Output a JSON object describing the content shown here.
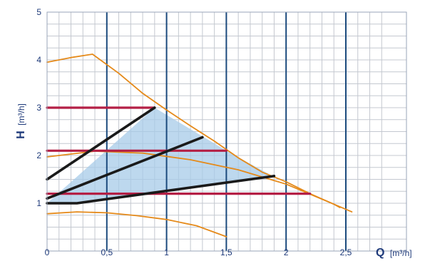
{
  "chart_data": {
    "type": "line",
    "title": "",
    "x_axis": {
      "label_symbol": "Q",
      "label_unit": "[m³/h]",
      "range": [
        0,
        2.75
      ],
      "major_ticks": [
        0,
        0.5,
        1,
        1.5,
        2,
        2.5
      ],
      "tick_labels": [
        "0",
        "0,5",
        "1",
        "1,5",
        "2",
        "2,5"
      ],
      "minor_step": 0.1
    },
    "y_axis": {
      "label_symbol": "H",
      "label_unit": "[m³/h]",
      "range": [
        0,
        5
      ],
      "major_ticks": [
        1,
        2,
        3,
        4,
        5
      ],
      "tick_labels": [
        "1",
        "2",
        "3",
        "4",
        "5"
      ],
      "minor_step": 0.25
    },
    "grid": true,
    "colors": {
      "frame": "#9aa5b8",
      "grid_minor": "#c4c8d0",
      "grid_major": "#1b4a7d",
      "text": "#1e3a7a",
      "orange": "#e58a1a",
      "red": "#b41f45",
      "black": "#1a1a1a",
      "fill": "#a7cbe8"
    },
    "shaded_region": [
      [
        0.0,
        1.0
      ],
      [
        0.9,
        3.0
      ],
      [
        1.5,
        2.1
      ],
      [
        1.9,
        1.55
      ],
      [
        0.9,
        1.25
      ],
      [
        0.25,
        1.0
      ]
    ],
    "series": [
      {
        "style": "orange",
        "points": [
          [
            0.0,
            3.95
          ],
          [
            0.2,
            4.05
          ],
          [
            0.38,
            4.12
          ],
          [
            0.6,
            3.72
          ],
          [
            0.8,
            3.3
          ],
          [
            1.0,
            2.95
          ],
          [
            1.2,
            2.62
          ],
          [
            1.4,
            2.3
          ],
          [
            1.6,
            1.95
          ],
          [
            1.8,
            1.65
          ],
          [
            2.0,
            1.45
          ],
          [
            2.2,
            1.2
          ],
          [
            2.4,
            0.98
          ],
          [
            2.55,
            0.82
          ]
        ]
      },
      {
        "style": "orange",
        "points": [
          [
            0.0,
            1.97
          ],
          [
            0.4,
            2.09
          ],
          [
            0.8,
            2.05
          ],
          [
            1.2,
            1.91
          ],
          [
            1.6,
            1.7
          ],
          [
            2.0,
            1.4
          ],
          [
            2.4,
            0.98
          ],
          [
            2.45,
            0.91
          ]
        ]
      },
      {
        "style": "orange",
        "points": [
          [
            0.0,
            0.78
          ],
          [
            0.25,
            0.82
          ],
          [
            0.5,
            0.8
          ],
          [
            0.75,
            0.74
          ],
          [
            1.0,
            0.66
          ],
          [
            1.25,
            0.53
          ],
          [
            1.5,
            0.3
          ]
        ]
      },
      {
        "style": "red",
        "points": [
          [
            0.0,
            3.0
          ],
          [
            0.9,
            3.0
          ]
        ]
      },
      {
        "style": "red",
        "points": [
          [
            0.0,
            2.1
          ],
          [
            1.5,
            2.1
          ]
        ]
      },
      {
        "style": "red",
        "points": [
          [
            0.0,
            1.2
          ],
          [
            2.2,
            1.2
          ]
        ]
      },
      {
        "style": "black",
        "points": [
          [
            0.0,
            1.5
          ],
          [
            0.9,
            3.0
          ]
        ]
      },
      {
        "style": "black",
        "points": [
          [
            0.0,
            1.1
          ],
          [
            1.3,
            2.38
          ]
        ]
      },
      {
        "style": "black",
        "points": [
          [
            0.0,
            1.0
          ],
          [
            0.25,
            1.0
          ],
          [
            1.9,
            1.57
          ]
        ]
      }
    ]
  }
}
